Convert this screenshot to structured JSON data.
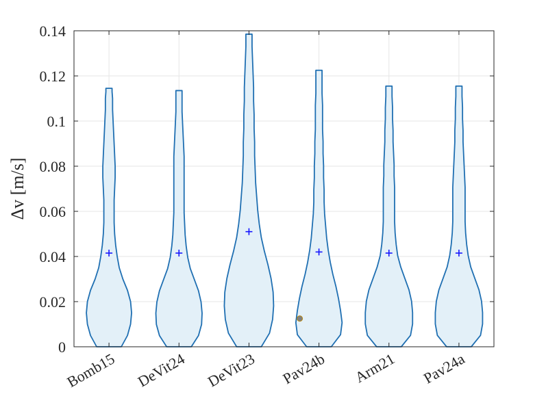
{
  "chart_data": {
    "type": "violin",
    "categories": [
      "Bomb15",
      "DeVit24",
      "DeVit23",
      "Pav24b",
      "Arm21",
      "Pav24a"
    ],
    "ylabel": "Δv [m/s]",
    "ylim": [
      0,
      0.14
    ],
    "yticks": [
      0,
      0.02,
      0.04,
      0.06,
      0.08,
      0.1,
      0.12,
      0.14
    ],
    "ytick_labels": [
      "0",
      "0.02",
      "0.04",
      "0.06",
      "0.08",
      "0.1",
      "0.12",
      "0.14"
    ],
    "grid": true,
    "means": [
      0.0415,
      0.0415,
      0.051,
      0.042,
      0.0415,
      0.0415
    ],
    "max_values": [
      0.1145,
      0.1135,
      0.1385,
      0.1225,
      0.1155,
      0.1155
    ],
    "outliers": [
      {
        "category": "Pav24b",
        "y": 0.0125
      }
    ],
    "density_profile_y": [
      0,
      0.005,
      0.01,
      0.015,
      0.02,
      0.025,
      0.03,
      0.035,
      0.04,
      0.045,
      0.05,
      0.055,
      0.06,
      0.065,
      0.07,
      0.075,
      0.08,
      0.085,
      0.09,
      0.095,
      0.1,
      0.105,
      0.11,
      0.113,
      0.1145
    ],
    "density_halfwidths": [
      [
        0.24,
        0.36,
        0.42,
        0.44,
        0.42,
        0.36,
        0.27,
        0.2,
        0.16,
        0.13,
        0.11,
        0.1,
        0.1,
        0.1,
        0.11,
        0.12,
        0.12,
        0.11,
        0.1,
        0.09,
        0.08,
        0.07,
        0.07,
        0.06,
        0.06
      ],
      [
        0.24,
        0.38,
        0.44,
        0.45,
        0.43,
        0.38,
        0.3,
        0.22,
        0.17,
        0.14,
        0.12,
        0.11,
        0.1,
        0.1,
        0.1,
        0.1,
        0.1,
        0.1,
        0.09,
        0.08,
        0.07,
        0.06,
        0.06,
        0.06,
        0.06
      ],
      [
        0.24,
        0.4,
        0.46,
        0.48,
        0.47,
        0.43,
        0.37,
        0.3,
        0.24,
        0.2,
        0.17,
        0.15,
        0.13,
        0.12,
        0.11,
        0.11,
        0.1,
        0.1,
        0.09,
        0.09,
        0.08,
        0.07,
        0.06,
        0.06,
        0.06
      ],
      [
        0.24,
        0.42,
        0.45,
        0.42,
        0.38,
        0.33,
        0.27,
        0.22,
        0.18,
        0.15,
        0.13,
        0.11,
        0.1,
        0.1,
        0.09,
        0.09,
        0.08,
        0.08,
        0.07,
        0.07,
        0.07,
        0.06,
        0.06,
        0.06,
        0.06
      ],
      [
        0.24,
        0.42,
        0.46,
        0.46,
        0.44,
        0.39,
        0.31,
        0.23,
        0.17,
        0.14,
        0.12,
        0.11,
        0.11,
        0.11,
        0.11,
        0.1,
        0.1,
        0.09,
        0.08,
        0.08,
        0.07,
        0.07,
        0.06,
        0.06,
        0.06
      ],
      [
        0.24,
        0.42,
        0.46,
        0.46,
        0.44,
        0.39,
        0.31,
        0.23,
        0.18,
        0.15,
        0.13,
        0.12,
        0.12,
        0.12,
        0.12,
        0.11,
        0.1,
        0.09,
        0.08,
        0.08,
        0.07,
        0.07,
        0.06,
        0.06,
        0.06
      ]
    ],
    "colors": {
      "violin_fill": "#e3f0f8",
      "violin_edge": "#1f6fb2",
      "mean_marker": "#1515ff",
      "outlier_fill": "#808080",
      "outlier_edge": "#b8860b",
      "grid": "#e6e6e6",
      "axis": "#262626"
    }
  }
}
